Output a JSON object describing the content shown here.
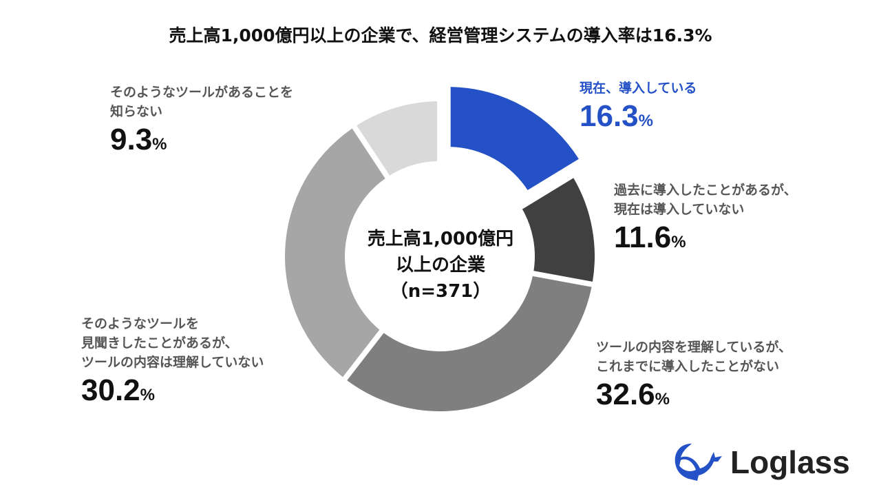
{
  "title": "売上高1,000億円以上の企業で、経営管理システムの導入率は16.3%",
  "center_label": {
    "line1": "売上高1,000億円",
    "line2": "以上の企業",
    "line3": "（n=371）"
  },
  "brand": {
    "name": "Loglass",
    "color": "#2451C6"
  },
  "chart_data": {
    "type": "pie",
    "donut": true,
    "title": "売上高1,000億円以上の企業で、経営管理システムの導入率は16.3%",
    "unit": "%",
    "slices": [
      {
        "label_line1": "現在、導入している",
        "label_line2": "",
        "value": 16.3,
        "value_text": "16.3",
        "color": "#2451C6",
        "highlight": true
      },
      {
        "label_line1": "過去に導入したことがあるが、",
        "label_line2": "現在は導入していない",
        "value": 11.6,
        "value_text": "11.6",
        "color": "#404040"
      },
      {
        "label_line1": "ツールの内容を理解しているが、",
        "label_line2": "これまでに導入したことがない",
        "value": 32.6,
        "value_text": "32.6",
        "color": "#7F7F7F"
      },
      {
        "label_line1": "そのようなツールを",
        "label_line2": "見聞きしたことがあるが、",
        "label_line3": "ツールの内容は理解していない",
        "value": 30.2,
        "value_text": "30.2",
        "color": "#A6A6A6"
      },
      {
        "label_line1": "そのようなツールがあることを",
        "label_line2": "知らない",
        "value": 9.3,
        "value_text": "9.3",
        "color": "#D9D9D9"
      }
    ]
  }
}
